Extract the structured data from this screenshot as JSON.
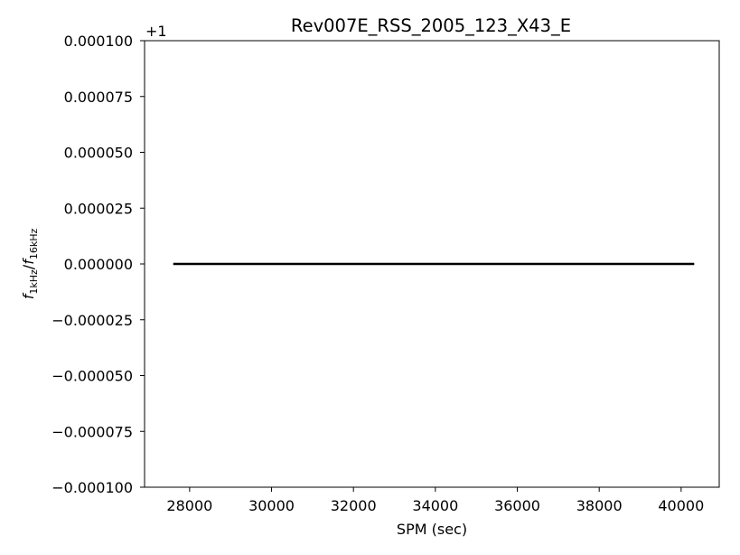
{
  "chart_data": {
    "type": "line",
    "title": "Rev007E_RSS_2005_123_X43_E",
    "xlabel": "SPM (sec)",
    "ylabel": {
      "f1": "f",
      "sub1": "1kHz",
      "slash": "/",
      "f2": "f",
      "sub2": "16kHz"
    },
    "y_offset_label": "+1",
    "xlim": [
      26900,
      40930
    ],
    "ylim": [
      -0.0001,
      0.0001
    ],
    "x_ticks": [
      28000,
      30000,
      32000,
      34000,
      36000,
      38000,
      40000
    ],
    "x_tick_labels": [
      "28000",
      "30000",
      "32000",
      "34000",
      "36000",
      "38000",
      "40000"
    ],
    "y_ticks": [
      0.0001,
      7.5e-05,
      5e-05,
      2.5e-05,
      0,
      -2.5e-05,
      -5e-05,
      -7.5e-05,
      -0.0001
    ],
    "y_tick_labels": [
      "0.000100",
      "0.000075",
      "0.000050",
      "0.000025",
      "0.000000",
      "−0.000025",
      "−0.000050",
      "−0.000075",
      "−0.000100"
    ],
    "series": [
      {
        "color": "#000000",
        "x": [
          27600,
          40320
        ],
        "y": [
          0,
          0
        ]
      }
    ],
    "grid": false
  }
}
